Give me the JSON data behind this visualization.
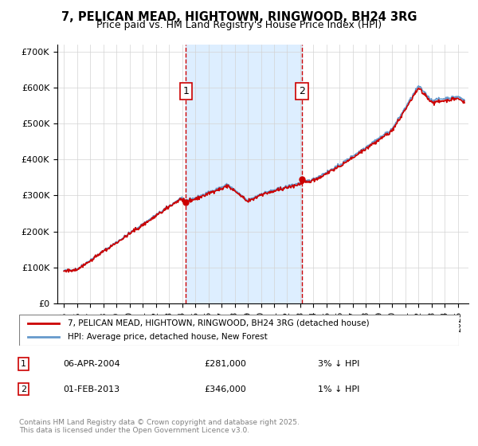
{
  "title": "7, PELICAN MEAD, HIGHTOWN, RINGWOOD, BH24 3RG",
  "subtitle": "Price paid vs. HM Land Registry's House Price Index (HPI)",
  "sale1_date": "2004-04-06",
  "sale1_label": "06-APR-2004",
  "sale1_price": 281000,
  "sale1_note": "3% ↓ HPI",
  "sale2_date": "2013-02-01",
  "sale2_label": "01-FEB-2013",
  "sale2_price": 346000,
  "sale2_note": "1% ↓ HPI",
  "legend_line1": "7, PELICAN MEAD, HIGHTOWN, RINGWOOD, BH24 3RG (detached house)",
  "legend_line2": "HPI: Average price, detached house, New Forest",
  "footer": "Contains HM Land Registry data © Crown copyright and database right 2025.\nThis data is licensed under the Open Government Licence v3.0.",
  "hpi_color": "#6699cc",
  "price_color": "#cc0000",
  "sale_vline_color": "#cc0000",
  "sale_dot_color": "#cc0000",
  "shading_color": "#ddeeff",
  "ylim": [
    0,
    720000
  ],
  "yticks": [
    0,
    100000,
    200000,
    300000,
    400000,
    500000,
    600000,
    700000
  ],
  "year_start": 1995,
  "year_end": 2026
}
